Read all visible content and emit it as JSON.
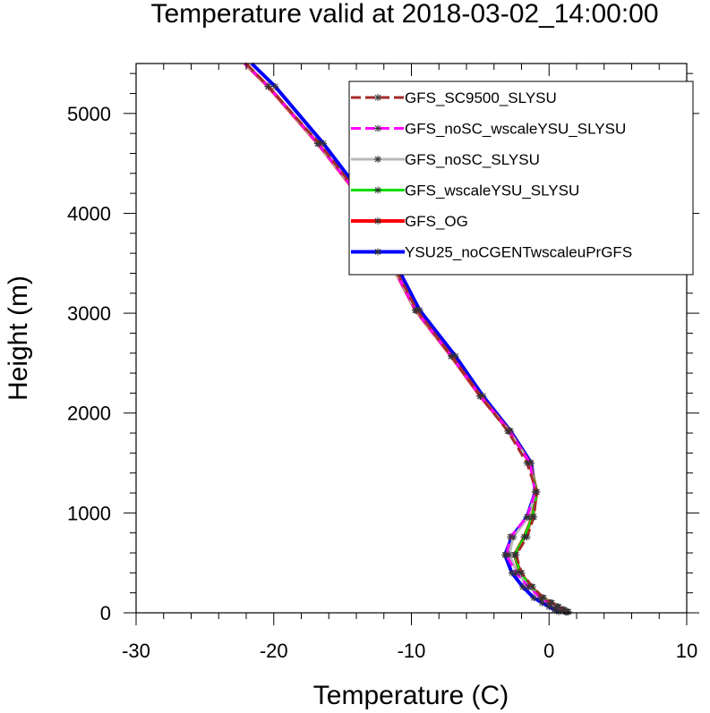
{
  "chart_data": {
    "type": "line",
    "title": "Temperature valid at 2018-03-02_14:00:00",
    "xlabel": "Temperature (C)",
    "ylabel": "Height (m)",
    "xlim": [
      -30,
      10
    ],
    "ylim": [
      0,
      5500
    ],
    "xticks": [
      -30,
      -20,
      -10,
      0,
      10
    ],
    "yticks": [
      0,
      1000,
      2000,
      3000,
      4000,
      5000
    ],
    "legend_position": "top-right",
    "grid": false,
    "series": [
      {
        "name": "GFS_SC9500_SLYSU",
        "color": "#a52a2a",
        "style": "dashed",
        "x": [
          1.4,
          1.1,
          0.7,
          0.2,
          -0.4,
          -1.2,
          -2.0,
          -2.4,
          -1.6,
          -1.1,
          -0.9,
          -1.6,
          -3.0,
          -5.0,
          -7.1,
          -9.6,
          -11.6,
          -13.4,
          -16.7,
          -20.4,
          -22.0
        ],
        "y": [
          10,
          30,
          60,
          100,
          150,
          260,
          400,
          580,
          760,
          960,
          1210,
          1500,
          1820,
          2170,
          2570,
          3030,
          3560,
          4120,
          4700,
          5270,
          5500
        ]
      },
      {
        "name": "GFS_noSC_wscaleYSU_SLYSU",
        "color": "#ff00ff",
        "style": "dashed",
        "x": [
          1.2,
          0.9,
          0.5,
          0.0,
          -0.6,
          -1.5,
          -2.4,
          -3.1,
          -2.8,
          -1.6,
          -1.0,
          -1.4,
          -2.9,
          -5.0,
          -7.1,
          -9.7,
          -11.7,
          -13.5,
          -16.8,
          -20.4,
          -22.1
        ],
        "y": [
          10,
          30,
          60,
          100,
          150,
          260,
          400,
          580,
          760,
          960,
          1210,
          1500,
          1820,
          2170,
          2570,
          3030,
          3560,
          4120,
          4700,
          5270,
          5500
        ]
      },
      {
        "name": "GFS_noSC_SLYSU",
        "color": "#b8b8b8",
        "style": "solid",
        "x": [
          1.2,
          0.9,
          0.5,
          0.0,
          -0.6,
          -1.5,
          -2.3,
          -2.9,
          -2.6,
          -1.5,
          -1.0,
          -1.4,
          -2.9,
          -5.0,
          -7.1,
          -9.7,
          -11.7,
          -13.5,
          -16.8,
          -20.4,
          -22.1
        ],
        "y": [
          10,
          30,
          60,
          100,
          150,
          260,
          400,
          580,
          760,
          960,
          1210,
          1500,
          1820,
          2170,
          2570,
          3030,
          3560,
          4120,
          4700,
          5270,
          5500
        ]
      },
      {
        "name": "GFS_wscaleYSU_SLYSU",
        "color": "#00dd00",
        "style": "solid",
        "x": [
          1.3,
          1.0,
          0.6,
          0.1,
          -0.5,
          -1.3,
          -2.1,
          -2.5,
          -1.8,
          -1.2,
          -0.9,
          -1.4,
          -2.9,
          -5.0,
          -7.1,
          -9.7,
          -11.7,
          -13.5,
          -16.8,
          -20.4,
          -22.1
        ],
        "y": [
          10,
          30,
          60,
          100,
          150,
          260,
          400,
          580,
          760,
          960,
          1210,
          1500,
          1820,
          2170,
          2570,
          3030,
          3560,
          4120,
          4700,
          5270,
          5500
        ]
      },
      {
        "name": "GFS_OG",
        "color": "#ff0000",
        "style": "solid",
        "x": [
          1.3,
          1.0,
          0.6,
          0.1,
          -0.5,
          -1.3,
          -2.1,
          -2.5,
          -1.8,
          -1.2,
          -0.9,
          -1.4,
          -2.9,
          -5.0,
          -7.1,
          -9.7,
          -11.7,
          -13.5,
          -16.8,
          -20.4,
          -22.1
        ],
        "y": [
          10,
          30,
          60,
          100,
          150,
          260,
          400,
          580,
          760,
          960,
          1210,
          1500,
          1820,
          2170,
          2570,
          3030,
          3560,
          4120,
          4700,
          5270,
          5500
        ]
      },
      {
        "name": "YSU25_noCGENTwscaleuPrGFS",
        "color": "#0000ff",
        "style": "solid",
        "x": [
          0.7,
          0.4,
          0.0,
          -0.5,
          -1.1,
          -1.9,
          -2.7,
          -3.2,
          -2.7,
          -1.6,
          -1.0,
          -1.3,
          -2.8,
          -4.8,
          -6.8,
          -9.4,
          -11.4,
          -13.2,
          -16.4,
          -19.9,
          -21.6
        ],
        "y": [
          10,
          30,
          60,
          100,
          150,
          260,
          400,
          580,
          760,
          960,
          1210,
          1500,
          1820,
          2170,
          2570,
          3030,
          3560,
          4120,
          4700,
          5270,
          5500
        ]
      }
    ]
  }
}
